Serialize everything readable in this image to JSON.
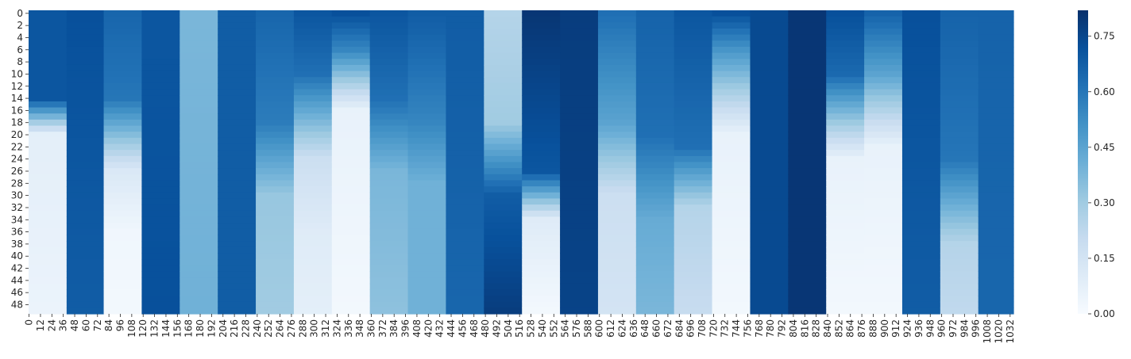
{
  "chart_data": {
    "type": "heatmap",
    "title": "",
    "xlabel": "",
    "ylabel": "",
    "n_rows": 50,
    "n_cols": 1036,
    "colormap": "Blues",
    "colormap_stops": [
      "#f7fbff",
      "#deebf7",
      "#c6dbef",
      "#9ecae1",
      "#6baed6",
      "#4292c6",
      "#2171b5",
      "#08519c",
      "#08306b"
    ],
    "vmin": 0.0,
    "vmax": 0.82,
    "x_tick_labels": [
      "0",
      "12",
      "24",
      "36",
      "48",
      "60",
      "72",
      "84",
      "96",
      "108",
      "120",
      "132",
      "144",
      "156",
      "168",
      "180",
      "192",
      "204",
      "216",
      "228",
      "240",
      "252",
      "264",
      "276",
      "288",
      "300",
      "312",
      "324",
      "336",
      "348",
      "360",
      "372",
      "384",
      "396",
      "408",
      "420",
      "432",
      "444",
      "456",
      "468",
      "480",
      "492",
      "504",
      "516",
      "528",
      "540",
      "552",
      "564",
      "576",
      "588",
      "600",
      "612",
      "624",
      "636",
      "648",
      "660",
      "672",
      "684",
      "696",
      "708",
      "720",
      "732",
      "744",
      "756",
      "768",
      "780",
      "792",
      "804",
      "816",
      "828",
      "840",
      "852",
      "864",
      "876",
      "888",
      "900",
      "912",
      "924",
      "936",
      "948",
      "960",
      "972",
      "984",
      "996",
      "1008",
      "1020",
      "1032"
    ],
    "y_tick_labels": [
      "0",
      "2",
      "4",
      "6",
      "8",
      "10",
      "12",
      "14",
      "16",
      "18",
      "20",
      "22",
      "24",
      "26",
      "28",
      "30",
      "32",
      "34",
      "36",
      "38",
      "40",
      "42",
      "44",
      "46",
      "48"
    ],
    "colorbar": {
      "ticks": [
        0.0,
        0.15,
        0.3,
        0.45,
        0.6,
        0.75
      ],
      "tick_labels": [
        "0.00",
        "0.15",
        "0.30",
        "0.45",
        "0.60",
        "0.75"
      ]
    },
    "column_blocks": [
      {
        "cols": [
          0,
          39
        ],
        "row_values": [
          [
            0,
            0.7
          ],
          [
            14,
            0.7
          ],
          [
            20,
            0.08
          ],
          [
            49,
            0.05
          ]
        ]
      },
      {
        "cols": [
          40,
          78
        ],
        "row_values": [
          [
            0,
            0.72
          ],
          [
            49,
            0.68
          ]
        ]
      },
      {
        "cols": [
          79,
          118
        ],
        "row_values": [
          [
            0,
            0.65
          ],
          [
            14,
            0.6
          ],
          [
            26,
            0.12
          ],
          [
            36,
            0.03
          ],
          [
            49,
            0.02
          ]
        ]
      },
      {
        "cols": [
          119,
          158
        ],
        "row_values": [
          [
            0,
            0.7
          ],
          [
            49,
            0.72
          ]
        ]
      },
      {
        "cols": [
          159,
          198
        ],
        "row_values": [
          [
            0,
            0.38
          ],
          [
            49,
            0.4
          ]
        ]
      },
      {
        "cols": [
          199,
          238
        ],
        "row_values": [
          [
            0,
            0.68
          ],
          [
            49,
            0.68
          ]
        ]
      },
      {
        "cols": [
          239,
          278
        ],
        "row_values": [
          [
            0,
            0.65
          ],
          [
            18,
            0.58
          ],
          [
            30,
            0.32
          ],
          [
            49,
            0.3
          ]
        ]
      },
      {
        "cols": [
          279,
          318
        ],
        "row_values": [
          [
            0,
            0.7
          ],
          [
            10,
            0.62
          ],
          [
            24,
            0.18
          ],
          [
            36,
            0.1
          ],
          [
            49,
            0.08
          ]
        ]
      },
      {
        "cols": [
          319,
          358
        ],
        "row_values": [
          [
            0,
            0.72
          ],
          [
            6,
            0.55
          ],
          [
            16,
            0.06
          ],
          [
            49,
            0.02
          ]
        ]
      },
      {
        "cols": [
          359,
          398
        ],
        "row_values": [
          [
            0,
            0.7
          ],
          [
            14,
            0.62
          ],
          [
            26,
            0.38
          ],
          [
            49,
            0.34
          ]
        ]
      },
      {
        "cols": [
          399,
          438
        ],
        "row_values": [
          [
            0,
            0.68
          ],
          [
            18,
            0.55
          ],
          [
            28,
            0.4
          ],
          [
            49,
            0.4
          ]
        ]
      },
      {
        "cols": [
          439,
          478
        ],
        "row_values": [
          [
            0,
            0.68
          ],
          [
            49,
            0.65
          ]
        ]
      },
      {
        "cols": [
          479,
          518
        ],
        "row_values": [
          [
            0,
            0.25
          ],
          [
            18,
            0.3
          ],
          [
            30,
            0.68
          ],
          [
            49,
            0.78
          ]
        ]
      },
      {
        "cols": [
          519,
          558
        ],
        "row_values": [
          [
            0,
            0.8
          ],
          [
            26,
            0.7
          ],
          [
            34,
            0.1
          ],
          [
            49,
            0.02
          ]
        ]
      },
      {
        "cols": [
          559,
          598
        ],
        "row_values": [
          [
            0,
            0.78
          ],
          [
            49,
            0.76
          ]
        ]
      },
      {
        "cols": [
          599,
          638
        ],
        "row_values": [
          [
            0,
            0.62
          ],
          [
            18,
            0.45
          ],
          [
            30,
            0.18
          ],
          [
            49,
            0.15
          ]
        ]
      },
      {
        "cols": [
          639,
          678
        ],
        "row_values": [
          [
            0,
            0.66
          ],
          [
            20,
            0.62
          ],
          [
            34,
            0.42
          ],
          [
            49,
            0.38
          ]
        ]
      },
      {
        "cols": [
          679,
          718
        ],
        "row_values": [
          [
            0,
            0.7
          ],
          [
            22,
            0.62
          ],
          [
            32,
            0.25
          ],
          [
            49,
            0.2
          ]
        ]
      },
      {
        "cols": [
          719,
          758
        ],
        "row_values": [
          [
            0,
            0.72
          ],
          [
            6,
            0.5
          ],
          [
            20,
            0.06
          ],
          [
            49,
            0.02
          ]
        ]
      },
      {
        "cols": [
          759,
          798
        ],
        "row_values": [
          [
            0,
            0.74
          ],
          [
            49,
            0.74
          ]
        ]
      },
      {
        "cols": [
          799,
          838
        ],
        "row_values": [
          [
            0,
            0.8
          ],
          [
            49,
            0.8
          ]
        ]
      },
      {
        "cols": [
          839,
          878
        ],
        "row_values": [
          [
            0,
            0.72
          ],
          [
            10,
            0.64
          ],
          [
            24,
            0.06
          ],
          [
            49,
            0.02
          ]
        ]
      },
      {
        "cols": [
          879,
          918
        ],
        "row_values": [
          [
            0,
            0.66
          ],
          [
            10,
            0.45
          ],
          [
            22,
            0.06
          ],
          [
            49,
            0.02
          ]
        ]
      },
      {
        "cols": [
          919,
          958
        ],
        "row_values": [
          [
            0,
            0.72
          ],
          [
            49,
            0.68
          ]
        ]
      },
      {
        "cols": [
          959,
          998
        ],
        "row_values": [
          [
            0,
            0.66
          ],
          [
            24,
            0.6
          ],
          [
            38,
            0.25
          ],
          [
            49,
            0.22
          ]
        ]
      },
      {
        "cols": [
          999,
          1035
        ],
        "row_values": [
          [
            0,
            0.66
          ],
          [
            49,
            0.65
          ]
        ]
      }
    ]
  }
}
